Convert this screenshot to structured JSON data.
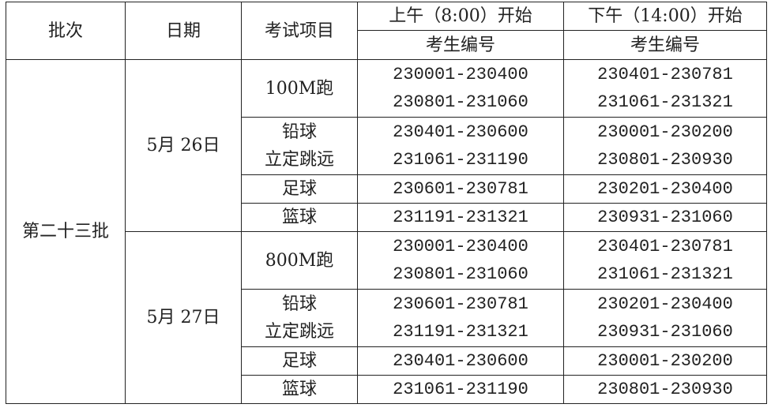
{
  "header": {
    "batch": "批次",
    "date": "日期",
    "event": "考试项目",
    "morning": "上午（8:00）开始",
    "afternoon": "下午（14:00）开始",
    "id_label_morning": "考生编号",
    "id_label_afternoon": "考生编号"
  },
  "batch": "第二十三批",
  "days": [
    {
      "date": "5月 26日",
      "rows": [
        {
          "event": [
            "100M跑"
          ],
          "morning": [
            "230001-230400",
            "230801-231060"
          ],
          "afternoon": [
            "230401-230781",
            "231061-231321"
          ]
        },
        {
          "event": [
            "铅球",
            "立定跳远"
          ],
          "morning": [
            "230401-230600",
            "231061-231190"
          ],
          "afternoon": [
            "230001-230200",
            "230801-230930"
          ]
        },
        {
          "event": [
            "足球"
          ],
          "morning": [
            "230601-230781"
          ],
          "afternoon": [
            "230201-230400"
          ]
        },
        {
          "event": [
            "篮球"
          ],
          "morning": [
            "231191-231321"
          ],
          "afternoon": [
            "230931-231060"
          ]
        }
      ]
    },
    {
      "date": "5月 27日",
      "rows": [
        {
          "event": [
            "800M跑"
          ],
          "morning": [
            "230001-230400",
            "230801-231060"
          ],
          "afternoon": [
            "230401-230781",
            "231061-231321"
          ]
        },
        {
          "event": [
            "铅球",
            "立定跳远"
          ],
          "morning": [
            "230601-230781",
            "231191-231321"
          ],
          "afternoon": [
            "230201-230400",
            "230931-231060"
          ]
        },
        {
          "event": [
            "足球"
          ],
          "morning": [
            "230401-230600"
          ],
          "afternoon": [
            "230001-230200"
          ]
        },
        {
          "event": [
            "篮球"
          ],
          "morning": [
            "231061-231190"
          ],
          "afternoon": [
            "230801-230930"
          ]
        }
      ]
    }
  ]
}
